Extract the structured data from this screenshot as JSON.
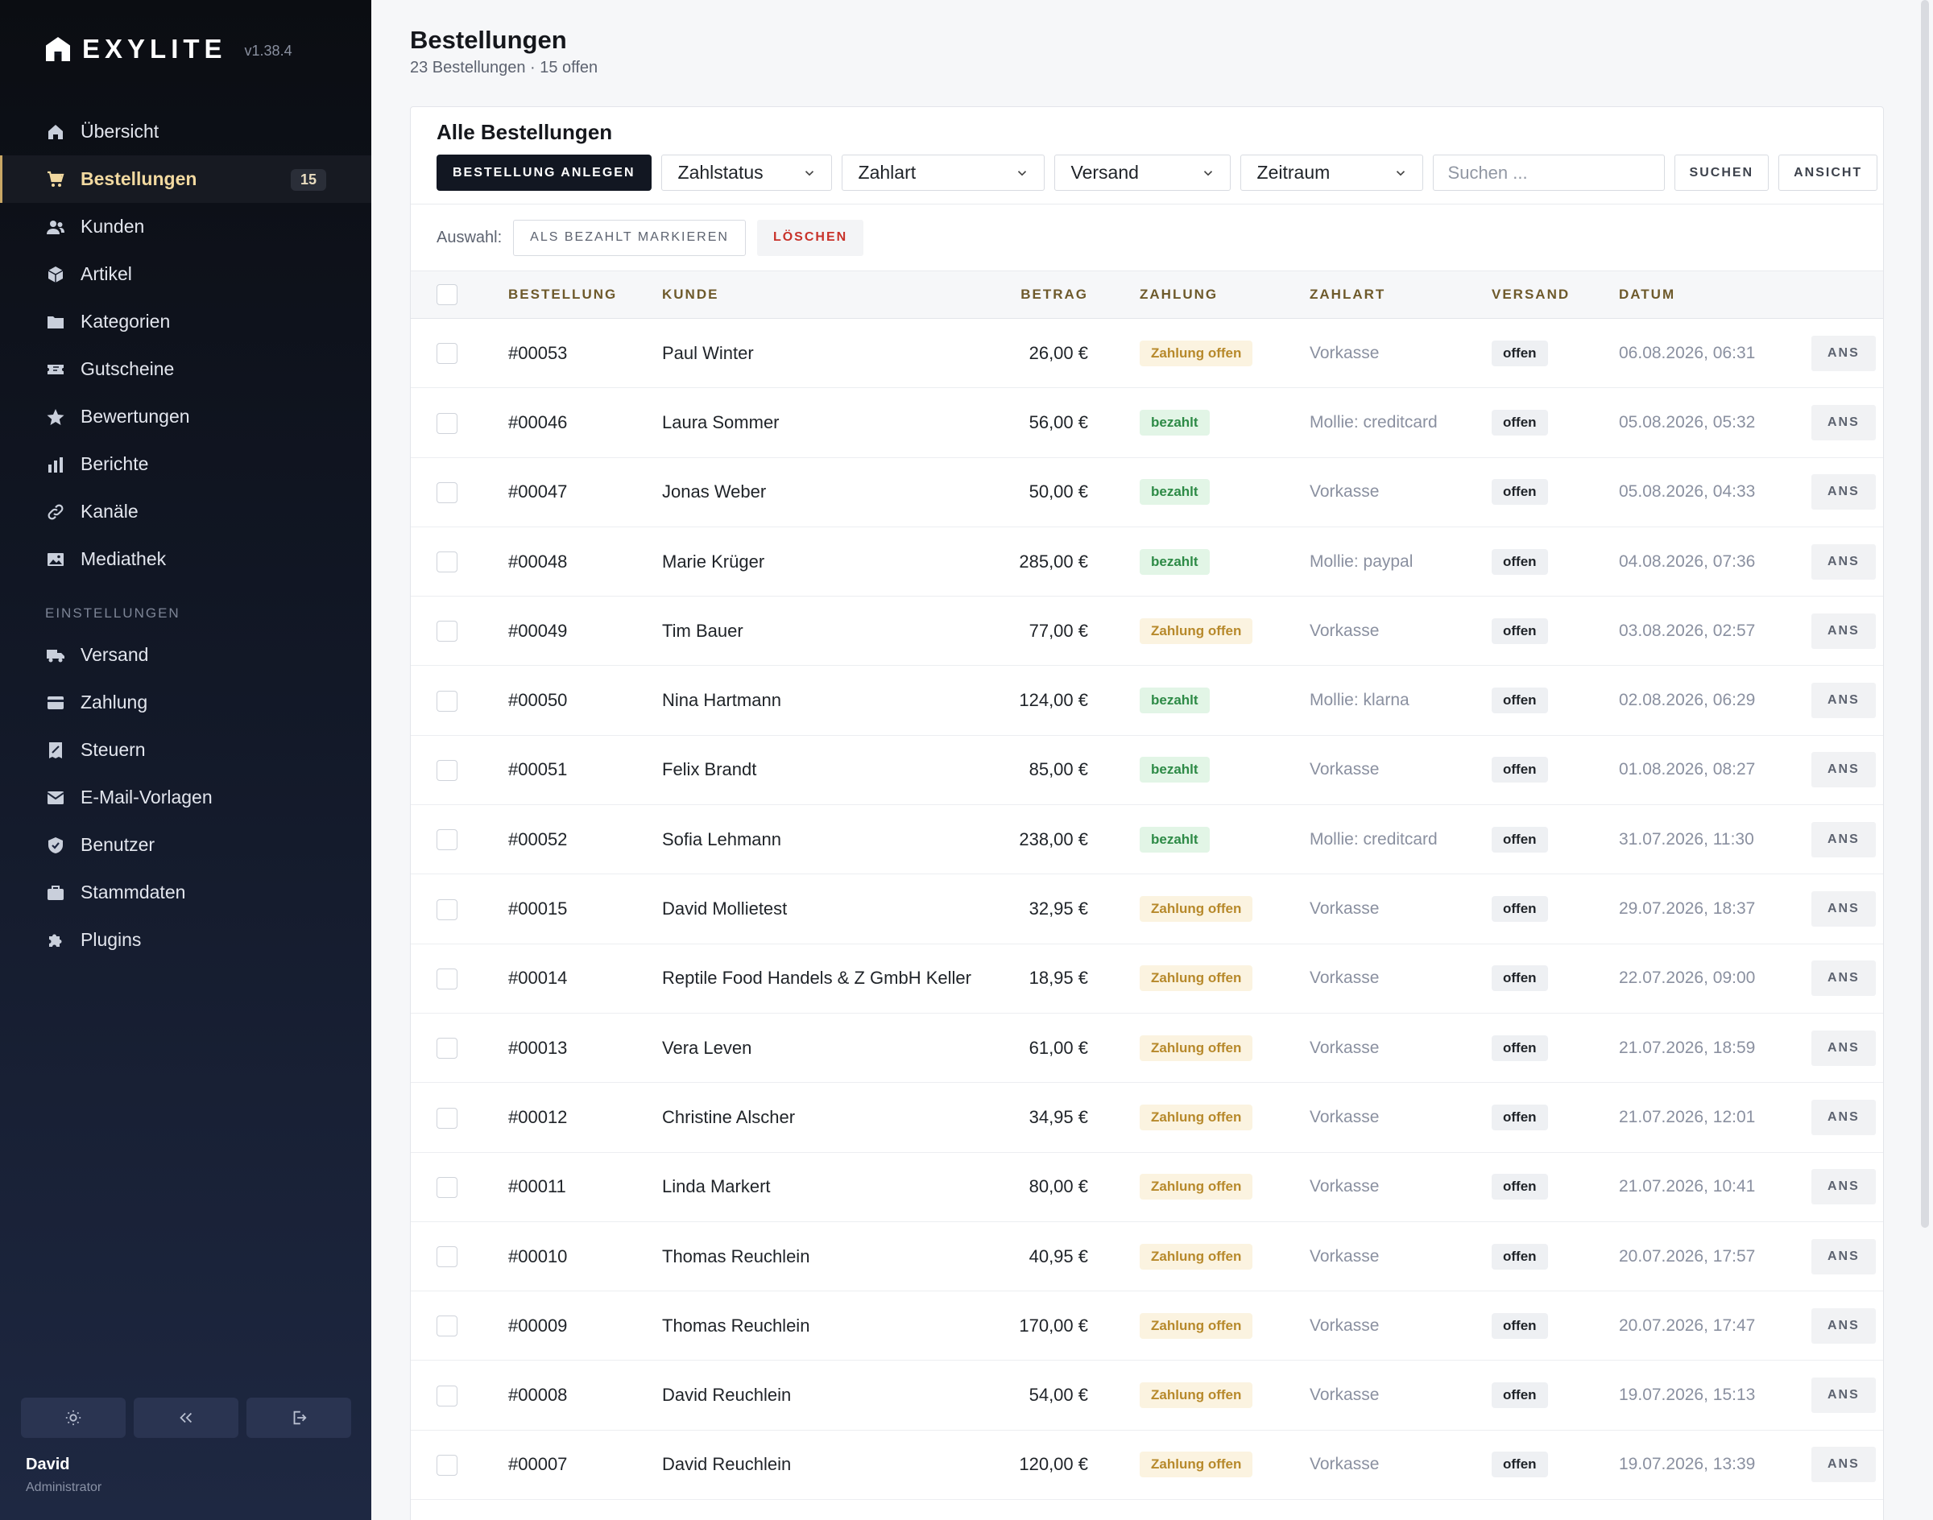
{
  "app": {
    "name": "EXYLITE",
    "version": "v1.38.4"
  },
  "sidebar": {
    "items": [
      {
        "label": "Übersicht",
        "icon": "home-icon"
      },
      {
        "label": "Bestellungen",
        "icon": "cart-icon",
        "badge": "15",
        "active": true
      },
      {
        "label": "Kunden",
        "icon": "users-icon"
      },
      {
        "label": "Artikel",
        "icon": "box-icon"
      },
      {
        "label": "Kategorien",
        "icon": "folder-icon"
      },
      {
        "label": "Gutscheine",
        "icon": "ticket-icon"
      },
      {
        "label": "Bewertungen",
        "icon": "star-icon"
      },
      {
        "label": "Berichte",
        "icon": "bar-chart-icon"
      },
      {
        "label": "Kanäle",
        "icon": "link-icon"
      },
      {
        "label": "Mediathek",
        "icon": "image-icon"
      }
    ],
    "section_label": "EINSTELLUNGEN",
    "settings_items": [
      {
        "label": "Versand",
        "icon": "truck-icon"
      },
      {
        "label": "Zahlung",
        "icon": "credit-card-icon"
      },
      {
        "label": "Steuern",
        "icon": "receipt-icon"
      },
      {
        "label": "E-Mail-Vorlagen",
        "icon": "mail-icon"
      },
      {
        "label": "Benutzer",
        "icon": "shield-icon"
      },
      {
        "label": "Stammdaten",
        "icon": "briefcase-icon"
      },
      {
        "label": "Plugins",
        "icon": "puzzle-icon"
      }
    ],
    "footer_buttons": [
      "sun-icon",
      "collapse-icon",
      "logout-icon"
    ],
    "user": {
      "name": "David",
      "role": "Administrator"
    }
  },
  "header": {
    "title": "Bestellungen",
    "subtitle": "23 Bestellungen · 15 offen"
  },
  "card": {
    "title": "Alle Bestellungen",
    "create_label": "BESTELLUNG ANLEGEN",
    "filters": {
      "payment_status": "Zahlstatus",
      "payment_method": "Zahlart",
      "shipping": "Versand",
      "period": "Zeitraum"
    },
    "search_placeholder": "Suchen ...",
    "search_label": "SUCHEN",
    "view_label": "ANSICHT",
    "selection_label": "Auswahl:",
    "mark_paid_label": "ALS BEZAHLT MARKIEREN",
    "delete_label": "LÖSCHEN"
  },
  "table": {
    "headers": {
      "order": "BESTELLUNG",
      "customer": "KUNDE",
      "amount": "BETRAG",
      "payment": "ZAHLUNG",
      "method": "ZAHLART",
      "shipping": "VERSAND",
      "date": "DATUM"
    },
    "row_action": "ANS",
    "rows": [
      {
        "order": "#00053",
        "customer": "Paul Winter",
        "amount": "26,00 €",
        "payment": "Zahlung offen",
        "paid": false,
        "method": "Vorkasse",
        "shipping": "offen",
        "date": "06.08.2026, 06:31"
      },
      {
        "order": "#00046",
        "customer": "Laura Sommer",
        "amount": "56,00 €",
        "payment": "bezahlt",
        "paid": true,
        "method": "Mollie: creditcard",
        "shipping": "offen",
        "date": "05.08.2026, 05:32"
      },
      {
        "order": "#00047",
        "customer": "Jonas Weber",
        "amount": "50,00 €",
        "payment": "bezahlt",
        "paid": true,
        "method": "Vorkasse",
        "shipping": "offen",
        "date": "05.08.2026, 04:33"
      },
      {
        "order": "#00048",
        "customer": "Marie Krüger",
        "amount": "285,00 €",
        "payment": "bezahlt",
        "paid": true,
        "method": "Mollie: paypal",
        "shipping": "offen",
        "date": "04.08.2026, 07:36"
      },
      {
        "order": "#00049",
        "customer": "Tim Bauer",
        "amount": "77,00 €",
        "payment": "Zahlung offen",
        "paid": false,
        "method": "Vorkasse",
        "shipping": "offen",
        "date": "03.08.2026, 02:57"
      },
      {
        "order": "#00050",
        "customer": "Nina Hartmann",
        "amount": "124,00 €",
        "payment": "bezahlt",
        "paid": true,
        "method": "Mollie: klarna",
        "shipping": "offen",
        "date": "02.08.2026, 06:29"
      },
      {
        "order": "#00051",
        "customer": "Felix Brandt",
        "amount": "85,00 €",
        "payment": "bezahlt",
        "paid": true,
        "method": "Vorkasse",
        "shipping": "offen",
        "date": "01.08.2026, 08:27"
      },
      {
        "order": "#00052",
        "customer": "Sofia Lehmann",
        "amount": "238,00 €",
        "payment": "bezahlt",
        "paid": true,
        "method": "Mollie: creditcard",
        "shipping": "offen",
        "date": "31.07.2026, 11:30"
      },
      {
        "order": "#00015",
        "customer": "David Mollietest",
        "amount": "32,95 €",
        "payment": "Zahlung offen",
        "paid": false,
        "method": "Vorkasse",
        "shipping": "offen",
        "date": "29.07.2026, 18:37"
      },
      {
        "order": "#00014",
        "customer": "Reptile Food Handels & Z GmbH Keller",
        "amount": "18,95 €",
        "payment": "Zahlung offen",
        "paid": false,
        "method": "Vorkasse",
        "shipping": "offen",
        "date": "22.07.2026, 09:00"
      },
      {
        "order": "#00013",
        "customer": "Vera Leven",
        "amount": "61,00 €",
        "payment": "Zahlung offen",
        "paid": false,
        "method": "Vorkasse",
        "shipping": "offen",
        "date": "21.07.2026, 18:59"
      },
      {
        "order": "#00012",
        "customer": "Christine Alscher",
        "amount": "34,95 €",
        "payment": "Zahlung offen",
        "paid": false,
        "method": "Vorkasse",
        "shipping": "offen",
        "date": "21.07.2026, 12:01"
      },
      {
        "order": "#00011",
        "customer": "Linda Markert",
        "amount": "80,00 €",
        "payment": "Zahlung offen",
        "paid": false,
        "method": "Vorkasse",
        "shipping": "offen",
        "date": "21.07.2026, 10:41"
      },
      {
        "order": "#00010",
        "customer": "Thomas Reuchlein",
        "amount": "40,95 €",
        "payment": "Zahlung offen",
        "paid": false,
        "method": "Vorkasse",
        "shipping": "offen",
        "date": "20.07.2026, 17:57"
      },
      {
        "order": "#00009",
        "customer": "Thomas Reuchlein",
        "amount": "170,00 €",
        "payment": "Zahlung offen",
        "paid": false,
        "method": "Vorkasse",
        "shipping": "offen",
        "date": "20.07.2026, 17:47"
      },
      {
        "order": "#00008",
        "customer": "David Reuchlein",
        "amount": "54,00 €",
        "payment": "Zahlung offen",
        "paid": false,
        "method": "Vorkasse",
        "shipping": "offen",
        "date": "19.07.2026, 15:13"
      },
      {
        "order": "#00007",
        "customer": "David Reuchlein",
        "amount": "120,00 €",
        "payment": "Zahlung offen",
        "paid": false,
        "method": "Vorkasse",
        "shipping": "offen",
        "date": "19.07.2026, 13:39"
      }
    ]
  },
  "colors": {
    "accent": "#c9a765",
    "open_badge_text": "#b7892b",
    "paid_badge_text": "#2d8a46",
    "delete_text": "#c8322a"
  }
}
